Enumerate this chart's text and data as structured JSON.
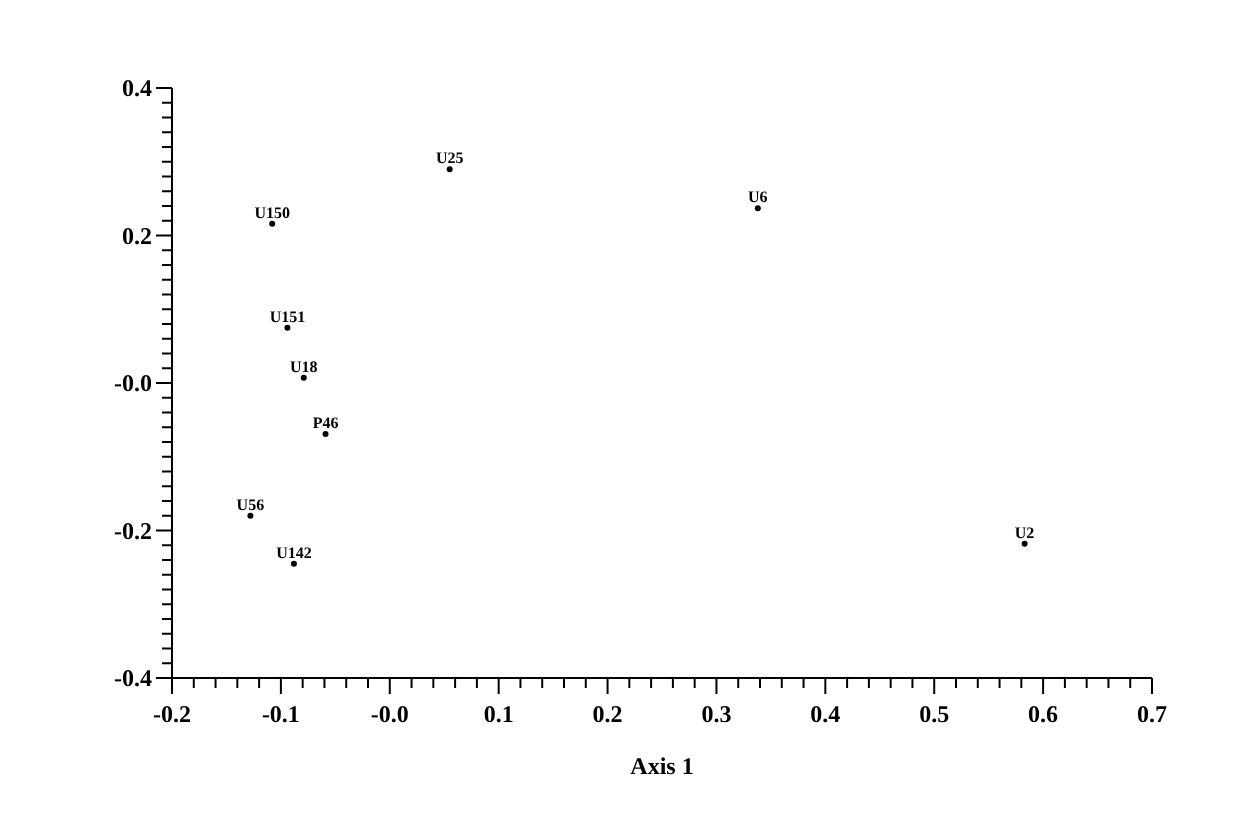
{
  "chart_data": {
    "type": "scatter",
    "xlabel": "Axis 1",
    "marker": "circle",
    "xlim": [
      -0.2,
      0.7
    ],
    "ylim": [
      -0.4,
      0.4
    ],
    "xticks": [
      -0.2,
      {
        "value": -0.18,
        "label": null
      },
      {
        "value": -0.16,
        "label": null
      },
      {
        "value": -0.14,
        "label": null
      },
      {
        "value": -0.12,
        "label": null
      },
      -0.1,
      {
        "value": -0.08,
        "label": null
      },
      {
        "value": -0.06,
        "label": null
      },
      {
        "value": -0.04,
        "label": null
      },
      {
        "value": -0.02,
        "label": null
      },
      {
        "value": 0,
        "label": "-0.0"
      },
      {
        "value": 0.02,
        "label": null
      },
      {
        "value": 0.04,
        "label": null
      },
      {
        "value": 0.06,
        "label": null
      },
      {
        "value": 0.08,
        "label": null
      },
      0.1,
      {
        "value": 0.12,
        "label": null
      },
      {
        "value": 0.14,
        "label": null
      },
      {
        "value": 0.16,
        "label": null
      },
      {
        "value": 0.18,
        "label": null
      },
      0.2,
      {
        "value": 0.22,
        "label": null
      },
      {
        "value": 0.24,
        "label": null
      },
      {
        "value": 0.26,
        "label": null
      },
      {
        "value": 0.28,
        "label": null
      },
      0.3,
      {
        "value": 0.32,
        "label": null
      },
      {
        "value": 0.34,
        "label": null
      },
      {
        "value": 0.36,
        "label": null
      },
      {
        "value": 0.38,
        "label": null
      },
      0.4,
      {
        "value": 0.42,
        "label": null
      },
      {
        "value": 0.44,
        "label": null
      },
      {
        "value": 0.46,
        "label": null
      },
      {
        "value": 0.48,
        "label": null
      },
      0.5,
      {
        "value": 0.52,
        "label": null
      },
      {
        "value": 0.54,
        "label": null
      },
      {
        "value": 0.56,
        "label": null
      },
      {
        "value": 0.58,
        "label": null
      },
      0.6,
      {
        "value": 0.62,
        "label": null
      },
      {
        "value": 0.64,
        "label": null
      },
      {
        "value": 0.66,
        "label": null
      },
      {
        "value": 0.68,
        "label": null
      },
      0.7
    ],
    "yticks": [
      -0.4,
      {
        "value": -0.38,
        "label": null
      },
      {
        "value": -0.36,
        "label": null
      },
      {
        "value": -0.34,
        "label": null
      },
      {
        "value": -0.32,
        "label": null
      },
      {
        "value": -0.3,
        "label": null
      },
      {
        "value": -0.28,
        "label": null
      },
      {
        "value": -0.26,
        "label": null
      },
      {
        "value": -0.24,
        "label": null
      },
      {
        "value": -0.22,
        "label": null
      },
      -0.2,
      {
        "value": -0.18,
        "label": null
      },
      {
        "value": -0.16,
        "label": null
      },
      {
        "value": -0.14,
        "label": null
      },
      {
        "value": -0.12,
        "label": null
      },
      {
        "value": -0.1,
        "label": null
      },
      {
        "value": -0.08,
        "label": null
      },
      {
        "value": -0.06,
        "label": null
      },
      {
        "value": -0.04,
        "label": null
      },
      {
        "value": -0.02,
        "label": null
      },
      {
        "value": 0,
        "label": "-0.0"
      },
      {
        "value": 0.02,
        "label": null
      },
      {
        "value": 0.04,
        "label": null
      },
      {
        "value": 0.06,
        "label": null
      },
      {
        "value": 0.08,
        "label": null
      },
      {
        "value": 0.1,
        "label": null
      },
      {
        "value": 0.12,
        "label": null
      },
      {
        "value": 0.14,
        "label": null
      },
      {
        "value": 0.16,
        "label": null
      },
      {
        "value": 0.18,
        "label": null
      },
      0.2,
      {
        "value": 0.22,
        "label": null
      },
      {
        "value": 0.24,
        "label": null
      },
      {
        "value": 0.26,
        "label": null
      },
      {
        "value": 0.28,
        "label": null
      },
      {
        "value": 0.3,
        "label": null
      },
      {
        "value": 0.32,
        "label": null
      },
      {
        "value": 0.34,
        "label": null
      },
      {
        "value": 0.36,
        "label": null
      },
      {
        "value": 0.38,
        "label": null
      },
      0.4
    ],
    "series": [
      {
        "color": "#000000",
        "x": [
          0.055,
          0.338,
          -0.108,
          -0.094,
          -0.079,
          -0.059,
          -0.128,
          -0.088,
          0.583
        ],
        "values": [
          0.29,
          0.237,
          0.216,
          0.075,
          0.007,
          -0.069,
          -0.18,
          -0.245,
          -0.218
        ],
        "value_labels": [
          "U25",
          "U6",
          "U150",
          "U151",
          "U18",
          "P46",
          "U56",
          "U142",
          "U2"
        ]
      }
    ]
  }
}
